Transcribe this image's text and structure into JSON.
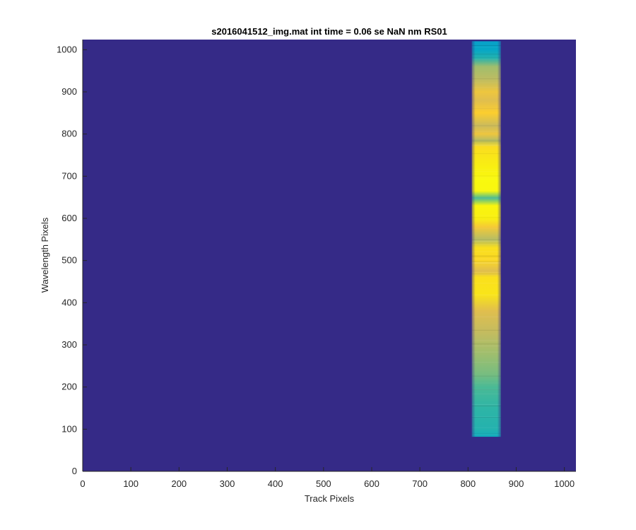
{
  "chart_data": {
    "type": "heatmap",
    "title": "s2016041512_img.mat int time = 0.06 se  NaN nm RS01",
    "xlabel": "Track Pixels",
    "ylabel": "Wavelength Pixels",
    "xlim": [
      0,
      1024
    ],
    "ylim": [
      0,
      1024
    ],
    "x_ticks": [
      "0",
      "100",
      "200",
      "300",
      "400",
      "500",
      "600",
      "700",
      "800",
      "900",
      "1000"
    ],
    "y_ticks": [
      "0",
      "100",
      "200",
      "300",
      "400",
      "500",
      "600",
      "700",
      "800",
      "900",
      "1000"
    ],
    "colormap": "parula",
    "background_color": "#352a87",
    "grid": false,
    "signal_band": {
      "x_range": [
        808,
        868
      ],
      "y_range": [
        82,
        1020
      ],
      "profile": [
        {
          "y": 82,
          "level": 0.32
        },
        {
          "y": 100,
          "level": 0.36
        },
        {
          "y": 150,
          "level": 0.38
        },
        {
          "y": 200,
          "level": 0.42
        },
        {
          "y": 230,
          "level": 0.47
        },
        {
          "y": 280,
          "level": 0.52
        },
        {
          "y": 330,
          "level": 0.57
        },
        {
          "y": 380,
          "level": 0.62
        },
        {
          "y": 420,
          "level": 0.8
        },
        {
          "y": 460,
          "level": 0.78
        },
        {
          "y": 475,
          "level": 0.62
        },
        {
          "y": 500,
          "level": 0.74
        },
        {
          "y": 530,
          "level": 0.78
        },
        {
          "y": 550,
          "level": 0.55
        },
        {
          "y": 580,
          "level": 0.68
        },
        {
          "y": 600,
          "level": 0.88
        },
        {
          "y": 630,
          "level": 0.93
        },
        {
          "y": 648,
          "level": 0.42
        },
        {
          "y": 665,
          "level": 0.95
        },
        {
          "y": 690,
          "level": 0.98
        },
        {
          "y": 720,
          "level": 0.88
        },
        {
          "y": 750,
          "level": 0.8
        },
        {
          "y": 770,
          "level": 0.76
        },
        {
          "y": 785,
          "level": 0.55
        },
        {
          "y": 800,
          "level": 0.66
        },
        {
          "y": 820,
          "level": 0.58
        },
        {
          "y": 850,
          "level": 0.7
        },
        {
          "y": 880,
          "level": 0.62
        },
        {
          "y": 900,
          "level": 0.66
        },
        {
          "y": 930,
          "level": 0.56
        },
        {
          "y": 960,
          "level": 0.52
        },
        {
          "y": 980,
          "level": 0.36
        },
        {
          "y": 1000,
          "level": 0.3
        },
        {
          "y": 1020,
          "level": 0.28
        }
      ]
    }
  }
}
